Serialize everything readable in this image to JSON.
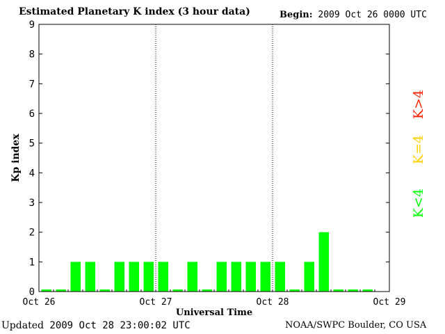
{
  "header": {
    "title": "Estimated Planetary K index (3 hour data)",
    "begin_label": "Begin:",
    "begin_value": "2009 Oct 26 0000 UTC"
  },
  "footer": {
    "updated_label": "Updated",
    "updated_value": "2009 Oct 28 23:00:02 UTC",
    "credit": "NOAA/SWPC Boulder, CO USA"
  },
  "legend": [
    {
      "label": "K>4",
      "color": "#ff2000"
    },
    {
      "label": "K=4",
      "color": "#ffd000"
    },
    {
      "label": "K<4",
      "color": "#00ff00"
    }
  ],
  "chart_data": {
    "type": "bar",
    "title": "Estimated Planetary K index (3 hour data)",
    "xlabel": "Universal Time",
    "ylabel": "Kp index",
    "ylim": [
      0,
      9
    ],
    "yticks": [
      0,
      1,
      2,
      3,
      4,
      5,
      6,
      7,
      8,
      9
    ],
    "day_labels": [
      "Oct 26",
      "Oct 27",
      "Oct 28",
      "Oct 29"
    ],
    "interval_hours": 3,
    "values": [
      0,
      0,
      1,
      1,
      0,
      1,
      1,
      1,
      1,
      0,
      1,
      0,
      1,
      1,
      1,
      1,
      1,
      0,
      1,
      2,
      0,
      0,
      0
    ],
    "grid": false,
    "day_separators": "dotted",
    "bar_color": "#00ff00"
  }
}
